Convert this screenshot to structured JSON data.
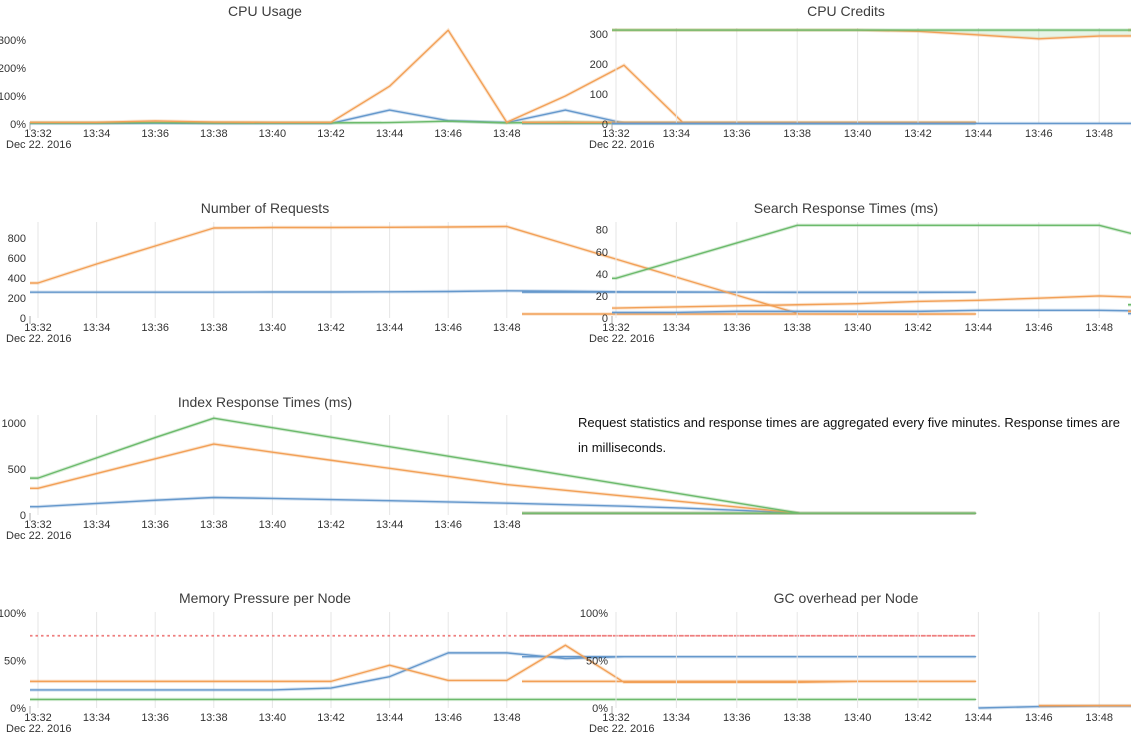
{
  "page": {
    "background": "#ffffff"
  },
  "palette": {
    "blue": "#6598cc",
    "orange": "#f2a057",
    "green": "#6cba6c",
    "red": "#ee7e7e",
    "grid": "#e6e6e6",
    "axis_text": "#333333",
    "title_text": "#3d3d3d"
  },
  "time_axis": {
    "tick_labels": [
      "13:32",
      "13:34",
      "13:36",
      "13:38",
      "13:40",
      "13:42",
      "13:44",
      "13:46",
      "13:48"
    ],
    "date_label": "Dec 22. 2016"
  },
  "note": {
    "text": "Request statistics and response times are aggregated every five minutes. Response times are in milliseconds."
  },
  "chart_data": [
    {
      "id": "cpu-usage",
      "type": "line",
      "title": "CPU Usage",
      "slot": {
        "col": "left",
        "row": "1"
      },
      "grid": false,
      "xlabel": "",
      "ylabel": "",
      "ylim": [
        0,
        343
      ],
      "x_minute_step": 1,
      "yticks": [
        {
          "v": 0,
          "label": "0%"
        },
        {
          "v": 100,
          "label": "100%"
        },
        {
          "v": 200,
          "label": "200%"
        },
        {
          "v": 300,
          "label": "300%"
        }
      ],
      "series": [
        {
          "name": "series-blue",
          "color": "blue",
          "values": [
            2,
            2,
            3,
            2,
            2,
            2,
            50,
            12,
            5,
            50,
            3,
            2,
            2,
            2,
            2,
            2,
            2
          ]
        },
        {
          "name": "series-green",
          "color": "green",
          "values": [
            4,
            4,
            5,
            4,
            4,
            4,
            5,
            10,
            4,
            7,
            4,
            4,
            4,
            4,
            4,
            4,
            4
          ]
        },
        {
          "name": "series-orange",
          "color": "orange",
          "values": [
            6,
            6,
            11,
            7,
            6,
            6,
            135,
            335,
            6,
            100,
            210,
            6,
            6,
            6,
            6,
            6,
            6
          ]
        }
      ]
    },
    {
      "id": "cpu-credits",
      "type": "line",
      "title": "CPU Credits",
      "slot": {
        "col": "right",
        "row": "1"
      },
      "grid": true,
      "xlabel": "",
      "ylabel": "",
      "ylim": [
        0,
        320
      ],
      "yticks": [
        {
          "v": 0,
          "label": "0"
        },
        {
          "v": 100,
          "label": "100"
        },
        {
          "v": 200,
          "label": "200"
        },
        {
          "v": 300,
          "label": "300"
        }
      ],
      "fill_between": [
        "green",
        "orange"
      ],
      "fill_between_color": "rgba(108,186,108,0.16)",
      "series": [
        {
          "name": "series-blue",
          "color": "blue",
          "values": [
            2,
            2,
            2,
            2,
            2,
            2,
            2,
            2,
            2,
            2,
            2,
            2,
            2,
            2,
            2,
            2,
            2
          ]
        },
        {
          "name": "series-orange",
          "color": "orange",
          "values": [
            313,
            313,
            313,
            313,
            313,
            309,
            297,
            284,
            293,
            294,
            281,
            289,
            299,
            307,
            312,
            313,
            313
          ]
        },
        {
          "name": "series-green",
          "color": "green",
          "values": [
            313,
            313,
            313,
            313,
            313,
            313,
            313,
            313,
            313,
            313,
            313,
            313,
            313,
            313,
            313,
            313,
            313
          ]
        }
      ]
    },
    {
      "id": "number-of-requests",
      "type": "line",
      "title": "Number of Requests",
      "slot": {
        "col": "left",
        "row": "2"
      },
      "grid": true,
      "xlabel": "",
      "ylabel": "",
      "ylim": [
        0,
        960
      ],
      "yticks": [
        {
          "v": 0,
          "label": "0"
        },
        {
          "v": 200,
          "label": "200"
        },
        {
          "v": 400,
          "label": "400"
        },
        {
          "v": 600,
          "label": "600"
        },
        {
          "v": 800,
          "label": "800"
        }
      ],
      "series": [
        {
          "name": "series-blue",
          "color": "blue",
          "values": [
            258,
            258,
            258,
            258,
            260,
            260,
            262,
            265,
            272,
            268,
            262,
            260,
            258,
            256,
            256,
            256,
            258
          ]
        },
        {
          "name": "series-orange",
          "color": "orange",
          "values": [
            350,
            540,
            720,
            900,
            905,
            905,
            907,
            910,
            915,
            740,
            565,
            390,
            215,
            40,
            38,
            38,
            40
          ]
        }
      ]
    },
    {
      "id": "search-response-times",
      "type": "line",
      "title": "Search Response Times (ms)",
      "slot": {
        "col": "right",
        "row": "2"
      },
      "grid": true,
      "xlabel": "",
      "ylabel": "",
      "ylim": [
        0,
        87
      ],
      "yticks": [
        {
          "v": 0,
          "label": "0"
        },
        {
          "v": 20,
          "label": "20"
        },
        {
          "v": 40,
          "label": "40"
        },
        {
          "v": 60,
          "label": "60"
        },
        {
          "v": 80,
          "label": "80"
        }
      ],
      "series": [
        {
          "name": "series-blue",
          "color": "blue",
          "values": [
            5,
            5,
            6,
            6,
            6,
            6,
            7,
            7,
            7,
            6,
            6,
            5,
            5,
            4,
            4,
            4,
            4
          ]
        },
        {
          "name": "series-orange",
          "color": "orange",
          "values": [
            9,
            10,
            11,
            12,
            13,
            15,
            16,
            18,
            20,
            18,
            15,
            12,
            9,
            7,
            6,
            6,
            6
          ]
        },
        {
          "name": "series-green",
          "color": "green",
          "values": [
            36,
            52,
            68,
            84,
            84,
            84,
            84,
            84,
            84,
            70,
            55,
            40,
            25,
            11,
            11,
            11,
            12
          ]
        }
      ]
    },
    {
      "id": "index-response-times",
      "type": "line",
      "title": "Index Response Times (ms)",
      "slot": {
        "col": "left",
        "row": "3"
      },
      "grid": true,
      "xlabel": "",
      "ylabel": "",
      "ylim": [
        0,
        1085
      ],
      "yticks": [
        {
          "v": 0,
          "label": "0"
        },
        {
          "v": 500,
          "label": "500"
        },
        {
          "v": 1000,
          "label": "1000"
        }
      ],
      "series": [
        {
          "name": "series-blue",
          "color": "blue",
          "values": [
            90,
            125,
            160,
            190,
            180,
            168,
            155,
            142,
            128,
            112,
            96,
            75,
            50,
            20,
            18,
            18,
            18
          ]
        },
        {
          "name": "series-orange",
          "color": "orange",
          "values": [
            290,
            450,
            610,
            770,
            682,
            594,
            506,
            418,
            330,
            268,
            206,
            144,
            82,
            20,
            20,
            20,
            20
          ]
        },
        {
          "name": "series-green",
          "color": "green",
          "values": [
            400,
            620,
            840,
            1050,
            947,
            844,
            741,
            638,
            535,
            432,
            329,
            226,
            123,
            20,
            20,
            20,
            20
          ]
        }
      ]
    },
    {
      "id": "memory-pressure-per-node",
      "type": "line",
      "title": "Memory Pressure per Node",
      "slot": {
        "col": "left",
        "row": "4"
      },
      "grid": true,
      "xlabel": "",
      "ylabel": "",
      "ylim": [
        0,
        101
      ],
      "yticks": [
        {
          "v": 0,
          "label": "0%"
        },
        {
          "v": 50,
          "label": "50%"
        },
        {
          "v": 100,
          "label": "100%"
        }
      ],
      "series": [
        {
          "name": "series-green",
          "color": "green",
          "values": [
            9,
            9,
            9,
            9,
            9,
            9,
            9,
            9,
            9,
            9,
            9,
            9,
            9,
            9,
            9,
            9,
            9
          ]
        },
        {
          "name": "series-blue",
          "color": "blue",
          "values": [
            19,
            19,
            19,
            19,
            19,
            21,
            33,
            58,
            58,
            52,
            54,
            54,
            54,
            54,
            54,
            54,
            54
          ]
        },
        {
          "name": "series-orange",
          "color": "orange",
          "values": [
            28,
            28,
            28,
            28,
            28,
            28,
            45,
            29,
            29,
            66,
            27,
            27,
            27,
            27,
            28,
            28,
            28
          ]
        },
        {
          "name": "series-red-dashed",
          "color": "red",
          "dashed": true,
          "values": [
            76,
            76,
            76,
            76,
            76,
            76,
            76,
            76,
            76,
            76,
            76,
            76,
            76,
            76,
            76,
            76,
            76
          ]
        }
      ]
    },
    {
      "id": "gc-overhead-per-node",
      "type": "line",
      "title": "GC overhead per Node",
      "slot": {
        "col": "right",
        "row": "4"
      },
      "grid": true,
      "xlabel": "",
      "ylabel": "",
      "ylim": [
        0,
        101
      ],
      "yticks": [
        {
          "v": 0,
          "label": "0%"
        },
        {
          "v": 50,
          "label": "50%"
        },
        {
          "v": 100,
          "label": "100%"
        }
      ],
      "series": [
        {
          "name": "series-blue",
          "color": "blue",
          "values": [
            null,
            null,
            null,
            null,
            null,
            null,
            0,
            1.5,
            2,
            2,
            2,
            2,
            2,
            2,
            2,
            2,
            2
          ]
        },
        {
          "name": "series-orange",
          "color": "orange",
          "values": [
            null,
            null,
            null,
            null,
            null,
            null,
            null,
            2.5,
            2.5,
            2.5,
            2.5,
            2.5,
            2.5,
            2.5,
            2.5,
            2.5,
            2.5
          ]
        }
      ]
    }
  ]
}
